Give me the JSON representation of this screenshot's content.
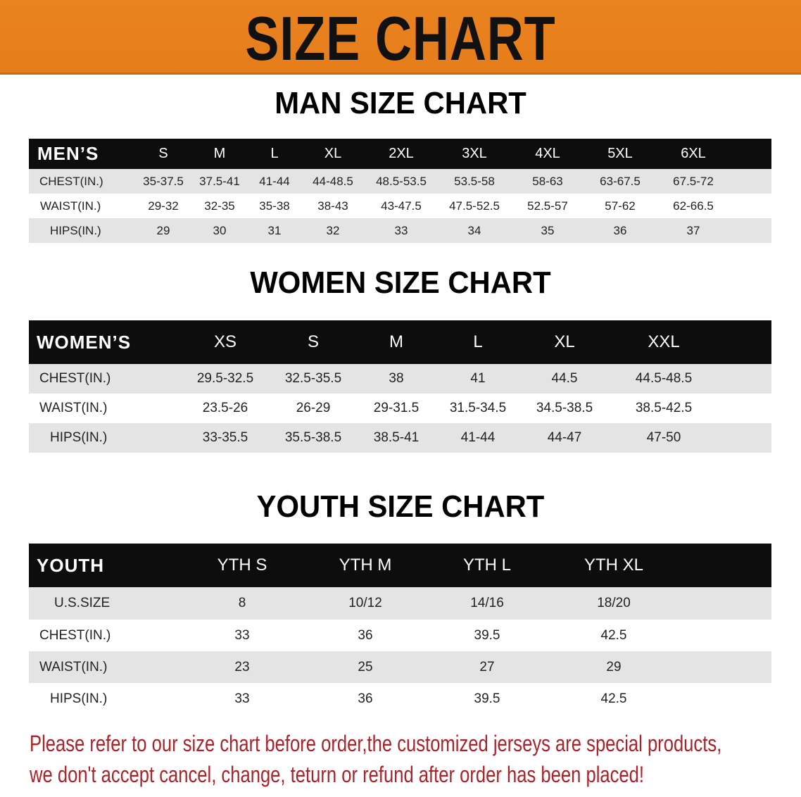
{
  "banner": {
    "title": "SIZE CHART",
    "color": "#E8801E"
  },
  "men": {
    "title": "MAN SIZE CHART",
    "header": [
      "MEN’S",
      "S",
      "M",
      "L",
      "XL",
      "2XL",
      "3XL",
      "4XL",
      "5XL",
      "6XL"
    ],
    "rows": [
      [
        "CHEST(IN.)",
        "35-37.5",
        "37.5-41",
        "41-44",
        "44-48.5",
        "48.5-53.5",
        "53.5-58",
        "58-63",
        "63-67.5",
        "67.5-72"
      ],
      [
        "WAIST(IN.)",
        "29-32",
        "32-35",
        "35-38",
        "38-43",
        "43-47.5",
        "47.5-52.5",
        "52.5-57",
        "57-62",
        "62-66.5"
      ],
      [
        "HIPS(IN.)",
        "29",
        "30",
        "31",
        "32",
        "33",
        "34",
        "35",
        "36",
        "37"
      ]
    ]
  },
  "women": {
    "title": "WOMEN SIZE CHART",
    "header": [
      "WOMEN’S",
      "XS",
      "S",
      "M",
      "L",
      "XL",
      "XXL"
    ],
    "rows": [
      [
        "CHEST(IN.)",
        "29.5-32.5",
        "32.5-35.5",
        "38",
        "41",
        "44.5",
        "44.5-48.5"
      ],
      [
        "WAIST(IN.)",
        "23.5-26",
        "26-29",
        "29-31.5",
        "31.5-34.5",
        "34.5-38.5",
        "38.5-42.5"
      ],
      [
        "HIPS(IN.)",
        "33-35.5",
        "35.5-38.5",
        "38.5-41",
        "41-44",
        "44-47",
        "47-50"
      ]
    ]
  },
  "youth": {
    "title": "YOUTH SIZE CHART",
    "header": [
      "YOUTH",
      "YTH S",
      "YTH M",
      "YTH L",
      "YTH XL"
    ],
    "rows": [
      [
        "U.S.SIZE",
        "8",
        "10/12",
        "14/16",
        "18/20"
      ],
      [
        "CHEST(IN.)",
        "33",
        "36",
        "39.5",
        "42.5"
      ],
      [
        "WAIST(IN.)",
        "23",
        "25",
        "27",
        "29"
      ],
      [
        "HIPS(IN.)",
        "33",
        "36",
        "39.5",
        "42.5"
      ]
    ]
  },
  "notice": {
    "line1": "Please refer to our size chart before order,the customized jerseys are special products,",
    "line2": "we don't accept cancel, change, teturn or refund after order has been placed!",
    "color": "#A8232A"
  }
}
